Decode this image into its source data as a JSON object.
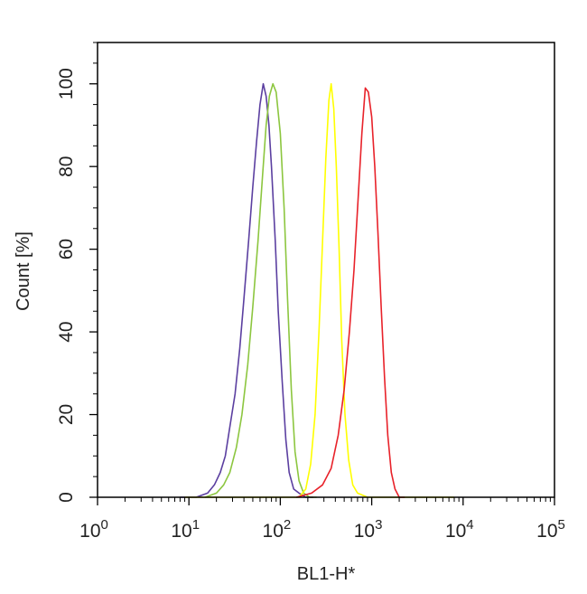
{
  "chart_data": {
    "type": "line",
    "title": "",
    "xlabel": "BL1-H*",
    "ylabel": "Count  [%]",
    "x_scale": "log",
    "xlim": [
      1,
      100000
    ],
    "ylim": [
      0,
      110
    ],
    "grid": false,
    "legend": "none",
    "x_ticks": [
      {
        "value": 1,
        "base": "10",
        "exp": "0"
      },
      {
        "value": 10,
        "base": "10",
        "exp": "1"
      },
      {
        "value": 100,
        "base": "10",
        "exp": "2"
      },
      {
        "value": 1000,
        "base": "10",
        "exp": "3"
      },
      {
        "value": 10000,
        "base": "10",
        "exp": "4"
      },
      {
        "value": 100000,
        "base": "10",
        "exp": "5"
      }
    ],
    "y_ticks": [
      {
        "value": 0,
        "label": "0"
      },
      {
        "value": 20,
        "label": "20"
      },
      {
        "value": 40,
        "label": "40"
      },
      {
        "value": 60,
        "label": "60"
      },
      {
        "value": 80,
        "label": "80"
      },
      {
        "value": 100,
        "label": "100"
      }
    ],
    "series": [
      {
        "color": "#5b3fa0",
        "x": [
          8,
          12,
          16,
          19,
          22,
          25,
          28,
          32,
          36,
          40,
          45,
          50,
          55,
          60,
          65,
          70,
          75,
          80,
          88,
          95,
          105,
          115,
          125,
          140,
          160,
          190,
          230
        ],
        "y": [
          0,
          0,
          1,
          3,
          6,
          10,
          17,
          25,
          36,
          48,
          62,
          75,
          86,
          95,
          100,
          97,
          90,
          80,
          62,
          45,
          28,
          14,
          6,
          2,
          1,
          0,
          0
        ]
      },
      {
        "color": "#8cc63f",
        "x": [
          15,
          20,
          24,
          28,
          33,
          38,
          44,
          50,
          57,
          64,
          70,
          76,
          83,
          90,
          100,
          110,
          120,
          132,
          145,
          160,
          180,
          210,
          250
        ],
        "y": [
          0,
          1,
          3,
          6,
          12,
          20,
          32,
          46,
          62,
          78,
          90,
          97,
          100,
          98,
          88,
          70,
          48,
          26,
          11,
          4,
          1,
          0,
          0
        ]
      },
      {
        "color": "#ffff00",
        "x": [
          9,
          20,
          60,
          160,
          190,
          215,
          240,
          265,
          290,
          315,
          340,
          360,
          385,
          410,
          440,
          470,
          510,
          560,
          620,
          700,
          900,
          3000,
          8000
        ],
        "y": [
          0,
          0,
          0,
          0,
          2,
          8,
          20,
          40,
          62,
          82,
          96,
          100,
          94,
          80,
          60,
          38,
          20,
          9,
          3,
          1,
          0,
          0,
          0
        ]
      },
      {
        "color": "#e8222a",
        "x": [
          150,
          220,
          290,
          360,
          430,
          500,
          570,
          640,
          710,
          780,
          850,
          920,
          1000,
          1080,
          1170,
          1270,
          1380,
          1500,
          1640,
          1800,
          2000,
          2300
        ],
        "y": [
          0,
          1,
          3,
          7,
          15,
          26,
          40,
          55,
          72,
          88,
          99,
          98,
          92,
          80,
          64,
          46,
          29,
          15,
          6,
          2,
          0,
          0
        ]
      }
    ]
  }
}
